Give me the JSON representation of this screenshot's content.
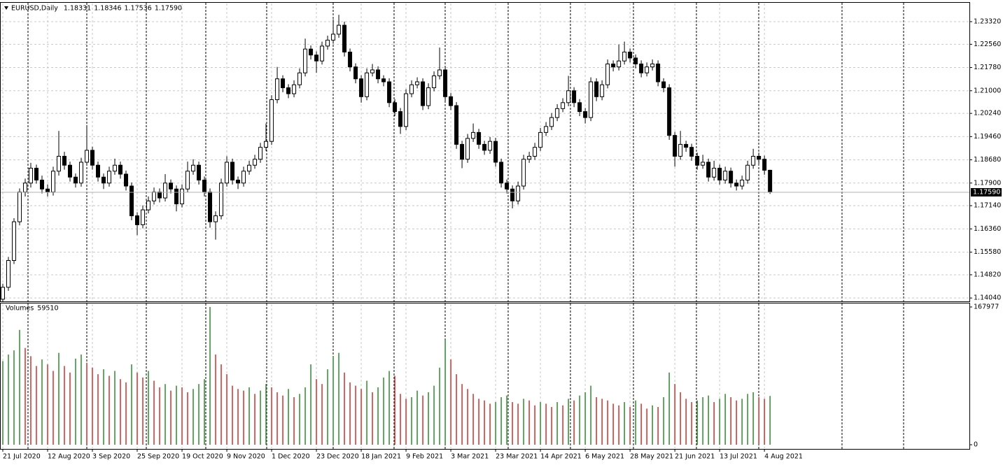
{
  "chart_data": {
    "type": "candlestick",
    "title": "EURUSD,Daily",
    "last_bar_labels": [
      "1.18331",
      "1.18346",
      "1.17536",
      "1.17590"
    ],
    "up_color": "#ffffff",
    "down_color": "#000000",
    "line_color": "#000000",
    "grid": true,
    "xlim": [
      -0.5,
      172.6
    ],
    "xticks": [
      {
        "value": 0,
        "label": "21 Jul 2020"
      },
      {
        "value": 8,
        "label": "12 Aug 2020"
      },
      {
        "value": 16,
        "label": "3 Sep 2020"
      },
      {
        "value": 24,
        "label": "25 Sep 2020"
      },
      {
        "value": 32,
        "label": "19 Oct 2020"
      },
      {
        "value": 40,
        "label": "9 Nov 2020"
      },
      {
        "value": 48,
        "label": "1 Dec 2020"
      },
      {
        "value": 56,
        "label": "23 Dec 2020"
      },
      {
        "value": 64,
        "label": "18 Jan 2021"
      },
      {
        "value": 72,
        "label": "9 Feb 2021"
      },
      {
        "value": 80,
        "label": "3 Mar 2021"
      },
      {
        "value": 88,
        "label": "23 Mar 2021"
      },
      {
        "value": 96,
        "label": "14 Apr 2021"
      },
      {
        "value": 104,
        "label": "6 May 2021"
      },
      {
        "value": 112,
        "label": "28 May 2021"
      },
      {
        "value": 120,
        "label": "21 Jun 2021"
      },
      {
        "value": 128,
        "label": "13 Jul 2021"
      },
      {
        "value": 136,
        "label": "4 Aug 2021"
      }
    ],
    "ylim": [
      1.1395,
      1.2393
    ],
    "yticks": [
      {
        "value": 1.1404,
        "label": "1.14040"
      },
      {
        "value": 1.1482,
        "label": "1.14820"
      },
      {
        "value": 1.1558,
        "label": "1.15580"
      },
      {
        "value": 1.1636,
        "label": "1.16360"
      },
      {
        "value": 1.1714,
        "label": "1.17140"
      },
      {
        "value": 1.179,
        "label": "1.17900"
      },
      {
        "value": 1.1868,
        "label": "1.18680"
      },
      {
        "value": 1.1946,
        "label": "1.19460"
      },
      {
        "value": 1.2024,
        "label": "1.20240"
      },
      {
        "value": 1.21,
        "label": "1.21000"
      },
      {
        "value": 1.2178,
        "label": "1.21780"
      },
      {
        "value": 1.2256,
        "label": "1.22560"
      },
      {
        "value": 1.2332,
        "label": "1.23320"
      }
    ],
    "ohlc": [
      [
        1.14,
        1.1452,
        1.139,
        1.144
      ],
      [
        1.144,
        1.1542,
        1.1428,
        1.153
      ],
      [
        1.153,
        1.1672,
        1.1518,
        1.166
      ],
      [
        1.166,
        1.1772,
        1.1648,
        1.176
      ],
      [
        1.176,
        1.1805,
        1.1745,
        1.179
      ],
      [
        1.179,
        1.1858,
        1.1775,
        1.184
      ],
      [
        1.184,
        1.1852,
        1.1788,
        1.18
      ],
      [
        1.18,
        1.1815,
        1.1755,
        1.177
      ],
      [
        1.177,
        1.1785,
        1.1745,
        1.176
      ],
      [
        1.176,
        1.1845,
        1.1748,
        1.183
      ],
      [
        1.183,
        1.1965,
        1.1815,
        1.188
      ],
      [
        1.188,
        1.1895,
        1.1835,
        1.185
      ],
      [
        1.185,
        1.1862,
        1.1795,
        1.181
      ],
      [
        1.181,
        1.1822,
        1.1775,
        1.179
      ],
      [
        1.179,
        1.1875,
        1.1778,
        1.186
      ],
      [
        1.186,
        1.1985,
        1.1848,
        1.19
      ],
      [
        1.19,
        1.1912,
        1.1835,
        1.185
      ],
      [
        1.185,
        1.1862,
        1.1795,
        1.181
      ],
      [
        1.181,
        1.1822,
        1.177,
        1.179
      ],
      [
        1.179,
        1.1845,
        1.1778,
        1.183
      ],
      [
        1.183,
        1.1872,
        1.1818,
        1.185
      ],
      [
        1.185,
        1.1862,
        1.1805,
        1.182
      ],
      [
        1.182,
        1.1832,
        1.1765,
        1.178
      ],
      [
        1.178,
        1.1792,
        1.1665,
        1.168
      ],
      [
        1.168,
        1.1692,
        1.1615,
        1.165
      ],
      [
        1.165,
        1.1715,
        1.1638,
        1.17
      ],
      [
        1.17,
        1.1745,
        1.1688,
        1.173
      ],
      [
        1.173,
        1.1775,
        1.1718,
        1.176
      ],
      [
        1.176,
        1.1772,
        1.1725,
        1.174
      ],
      [
        1.174,
        1.182,
        1.1728,
        1.179
      ],
      [
        1.179,
        1.1802,
        1.1755,
        1.177
      ],
      [
        1.177,
        1.1782,
        1.1695,
        1.172
      ],
      [
        1.172,
        1.1785,
        1.1708,
        1.177
      ],
      [
        1.177,
        1.1862,
        1.1758,
        1.183
      ],
      [
        1.183,
        1.187,
        1.1818,
        1.185
      ],
      [
        1.185,
        1.1862,
        1.1785,
        1.18
      ],
      [
        1.18,
        1.1812,
        1.1745,
        1.176
      ],
      [
        1.176,
        1.1772,
        1.164,
        1.166
      ],
      [
        1.166,
        1.1695,
        1.16,
        1.168
      ],
      [
        1.168,
        1.1805,
        1.1668,
        1.179
      ],
      [
        1.179,
        1.188,
        1.1778,
        1.186
      ],
      [
        1.186,
        1.1872,
        1.1785,
        1.18
      ],
      [
        1.18,
        1.1812,
        1.177,
        1.179
      ],
      [
        1.179,
        1.1845,
        1.1778,
        1.183
      ],
      [
        1.183,
        1.1865,
        1.1818,
        1.185
      ],
      [
        1.185,
        1.1885,
        1.1838,
        1.187
      ],
      [
        1.187,
        1.1925,
        1.1858,
        1.191
      ],
      [
        1.191,
        1.199,
        1.1898,
        1.193
      ],
      [
        1.193,
        1.2085,
        1.1918,
        1.207
      ],
      [
        1.207,
        1.218,
        1.2058,
        1.214
      ],
      [
        1.214,
        1.2152,
        1.2095,
        1.211
      ],
      [
        1.211,
        1.2122,
        1.2075,
        1.209
      ],
      [
        1.209,
        1.2135,
        1.2078,
        1.212
      ],
      [
        1.212,
        1.2175,
        1.2108,
        1.216
      ],
      [
        1.216,
        1.2275,
        1.2148,
        1.224
      ],
      [
        1.224,
        1.2252,
        1.2205,
        1.222
      ],
      [
        1.222,
        1.2232,
        1.216,
        1.22
      ],
      [
        1.22,
        1.2265,
        1.2188,
        1.225
      ],
      [
        1.225,
        1.2285,
        1.2238,
        1.227
      ],
      [
        1.227,
        1.234,
        1.2258,
        1.229
      ],
      [
        1.229,
        1.2355,
        1.2278,
        1.232
      ],
      [
        1.232,
        1.2332,
        1.2215,
        1.223
      ],
      [
        1.223,
        1.2242,
        1.2165,
        1.218
      ],
      [
        1.218,
        1.2192,
        1.2125,
        1.214
      ],
      [
        1.214,
        1.2152,
        1.206,
        1.208
      ],
      [
        1.208,
        1.2175,
        1.2068,
        1.216
      ],
      [
        1.216,
        1.219,
        1.2148,
        1.217
      ],
      [
        1.217,
        1.2182,
        1.2125,
        1.214
      ],
      [
        1.214,
        1.2152,
        1.2115,
        1.213
      ],
      [
        1.213,
        1.2142,
        1.2045,
        1.206
      ],
      [
        1.206,
        1.2072,
        1.2015,
        1.203
      ],
      [
        1.203,
        1.2042,
        1.1955,
        1.198
      ],
      [
        1.198,
        1.2105,
        1.1968,
        1.209
      ],
      [
        1.209,
        1.2135,
        1.2078,
        1.212
      ],
      [
        1.212,
        1.2145,
        1.2108,
        1.213
      ],
      [
        1.213,
        1.2142,
        1.2035,
        1.205
      ],
      [
        1.205,
        1.2125,
        1.2038,
        1.211
      ],
      [
        1.211,
        1.2165,
        1.2098,
        1.215
      ],
      [
        1.215,
        1.2245,
        1.2138,
        1.217
      ],
      [
        1.217,
        1.2182,
        1.2065,
        1.208
      ],
      [
        1.208,
        1.2092,
        1.2035,
        1.205
      ],
      [
        1.205,
        1.2062,
        1.1905,
        1.192
      ],
      [
        1.192,
        1.1932,
        1.184,
        1.187
      ],
      [
        1.187,
        1.1955,
        1.1858,
        1.194
      ],
      [
        1.194,
        1.199,
        1.1928,
        1.196
      ],
      [
        1.196,
        1.1972,
        1.1905,
        1.192
      ],
      [
        1.192,
        1.1932,
        1.1885,
        1.19
      ],
      [
        1.19,
        1.1945,
        1.1888,
        1.193
      ],
      [
        1.193,
        1.1942,
        1.1845,
        1.186
      ],
      [
        1.186,
        1.1872,
        1.1775,
        1.179
      ],
      [
        1.179,
        1.1802,
        1.1755,
        1.177
      ],
      [
        1.177,
        1.1782,
        1.1705,
        1.173
      ],
      [
        1.173,
        1.1795,
        1.1718,
        1.178
      ],
      [
        1.178,
        1.1885,
        1.1768,
        1.187
      ],
      [
        1.187,
        1.1895,
        1.1858,
        1.188
      ],
      [
        1.188,
        1.1925,
        1.1868,
        1.191
      ],
      [
        1.191,
        1.1975,
        1.1898,
        1.196
      ],
      [
        1.196,
        1.1995,
        1.1948,
        1.198
      ],
      [
        1.198,
        1.2025,
        1.1968,
        1.201
      ],
      [
        1.201,
        1.2055,
        1.1998,
        1.204
      ],
      [
        1.204,
        1.2075,
        1.2028,
        1.206
      ],
      [
        1.206,
        1.215,
        1.2048,
        1.21
      ],
      [
        1.21,
        1.2112,
        1.2045,
        1.206
      ],
      [
        1.206,
        1.2072,
        1.2015,
        1.203
      ],
      [
        1.203,
        1.2042,
        1.199,
        1.201
      ],
      [
        1.201,
        1.2145,
        1.1998,
        1.213
      ],
      [
        1.213,
        1.2142,
        1.2065,
        1.208
      ],
      [
        1.208,
        1.2135,
        1.2068,
        1.212
      ],
      [
        1.212,
        1.2205,
        1.2108,
        1.219
      ],
      [
        1.219,
        1.2202,
        1.2165,
        1.218
      ],
      [
        1.218,
        1.2255,
        1.2168,
        1.22
      ],
      [
        1.22,
        1.2265,
        1.2188,
        1.223
      ],
      [
        1.223,
        1.2242,
        1.2195,
        1.221
      ],
      [
        1.221,
        1.2222,
        1.2175,
        1.219
      ],
      [
        1.219,
        1.2202,
        1.2145,
        1.216
      ],
      [
        1.216,
        1.2195,
        1.2148,
        1.218
      ],
      [
        1.218,
        1.2205,
        1.2168,
        1.219
      ],
      [
        1.219,
        1.2202,
        1.2115,
        1.213
      ],
      [
        1.213,
        1.2142,
        1.2095,
        1.211
      ],
      [
        1.211,
        1.2122,
        1.1935,
        1.195
      ],
      [
        1.195,
        1.1962,
        1.1845,
        1.188
      ],
      [
        1.188,
        1.1965,
        1.1868,
        1.192
      ],
      [
        1.192,
        1.1932,
        1.1895,
        1.191
      ],
      [
        1.191,
        1.1922,
        1.1865,
        1.188
      ],
      [
        1.188,
        1.1892,
        1.1835,
        1.185
      ],
      [
        1.185,
        1.1885,
        1.1838,
        1.186
      ],
      [
        1.186,
        1.1872,
        1.1795,
        1.181
      ],
      [
        1.181,
        1.1865,
        1.1798,
        1.184
      ],
      [
        1.184,
        1.1852,
        1.1785,
        1.18
      ],
      [
        1.18,
        1.1845,
        1.1788,
        1.183
      ],
      [
        1.183,
        1.1842,
        1.1775,
        1.179
      ],
      [
        1.179,
        1.1802,
        1.1765,
        1.178
      ],
      [
        1.178,
        1.1815,
        1.1768,
        1.18
      ],
      [
        1.18,
        1.1865,
        1.1788,
        1.185
      ],
      [
        1.185,
        1.1905,
        1.1838,
        1.188
      ],
      [
        1.188,
        1.1892,
        1.1855,
        1.187
      ],
      [
        1.187,
        1.1882,
        1.1818,
        1.18331
      ],
      [
        1.18331,
        1.18346,
        1.17536,
        1.1759
      ]
    ],
    "volume": {
      "name": "Volumes",
      "up_color": "#2e8b2e",
      "down_color": "#d0312d",
      "ylim": [
        0,
        167977
      ],
      "yticks": [
        0,
        167977
      ],
      "values": [
        102000,
        110000,
        115000,
        140000,
        118000,
        108000,
        96000,
        104000,
        98000,
        90000,
        112000,
        96000,
        88000,
        105000,
        110000,
        100000,
        94000,
        86000,
        92000,
        84000,
        90000,
        80000,
        76000,
        98000,
        88000,
        82000,
        90000,
        78000,
        70000,
        74000,
        66000,
        72000,
        70000,
        64000,
        68000,
        74000,
        80000,
        167977,
        110000,
        98000,
        86000,
        72000,
        68000,
        66000,
        70000,
        62000,
        66000,
        74000,
        70000,
        64000,
        60000,
        68000,
        58000,
        62000,
        70000,
        98000,
        80000,
        74000,
        92000,
        108000,
        112000,
        88000,
        76000,
        72000,
        68000,
        78000,
        64000,
        70000,
        82000,
        90000,
        84000,
        62000,
        56000,
        58000,
        66000,
        60000,
        64000,
        72000,
        94000,
        128000,
        104000,
        86000,
        74000,
        68000,
        62000,
        56000,
        54000,
        50000,
        52000,
        58000,
        60000,
        52000,
        50000,
        56000,
        54000,
        48000,
        52000,
        50000,
        46000,
        52000,
        48000,
        56000,
        54000,
        60000,
        64000,
        72000,
        58000,
        56000,
        54000,
        50000,
        48000,
        52000,
        46000,
        54000,
        50000,
        44000,
        48000,
        46000,
        58000,
        88000,
        74000,
        64000,
        56000,
        52000,
        54000,
        58000,
        60000,
        52000,
        56000,
        62000,
        58000,
        54000,
        56000,
        62000,
        64000,
        58000,
        56000,
        59510
      ]
    }
  }
}
